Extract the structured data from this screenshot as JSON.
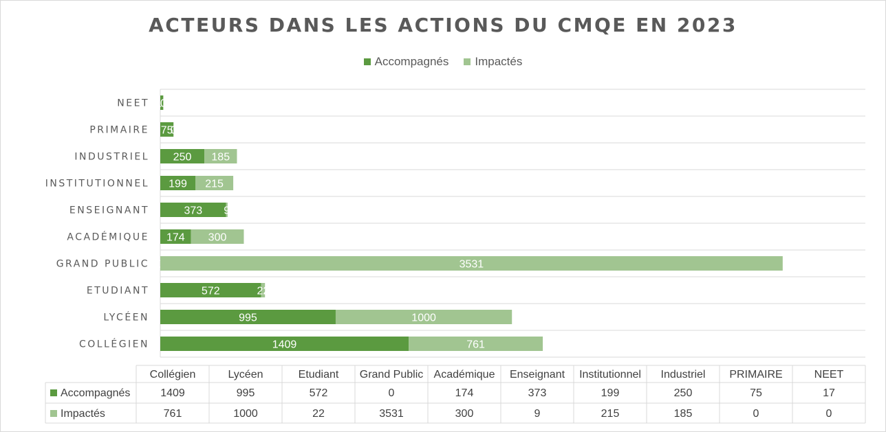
{
  "chart_data": {
    "type": "bar",
    "orientation": "horizontal",
    "stacked": true,
    "title": "ACTEURS DANS LES ACTIONS DU CMQE EN 2023",
    "categories": [
      "Collégien",
      "Lycéen",
      "Etudiant",
      "Grand Public",
      "Académique",
      "Enseignant",
      "Institutionnel",
      "Industriel",
      "PRIMAIRE",
      "NEET"
    ],
    "axis_categories": [
      "COLLÉGIEN",
      "LYCÉEN",
      "ETUDIANT",
      "GRAND PUBLIC",
      "ACADÉMIQUE",
      "ENSEIGNANT",
      "INSTITUTIONNEL",
      "INDUSTRIEL",
      "PRIMAIRE",
      "NEET"
    ],
    "series": [
      {
        "name": "Accompagnés",
        "values": [
          1409,
          995,
          572,
          0,
          174,
          373,
          199,
          250,
          75,
          17
        ],
        "color": "#5b9a40"
      },
      {
        "name": "Impactés",
        "values": [
          761,
          1000,
          22,
          3531,
          300,
          9,
          215,
          185,
          0,
          0
        ],
        "color": "#a1c591"
      }
    ],
    "xlim": [
      0,
      4000
    ],
    "grid": true,
    "legend_position": "top",
    "data_table": true
  },
  "colors": {
    "accent": "#5b9a40",
    "accent_light": "#a1c591",
    "grid": "#d9d9d9"
  }
}
